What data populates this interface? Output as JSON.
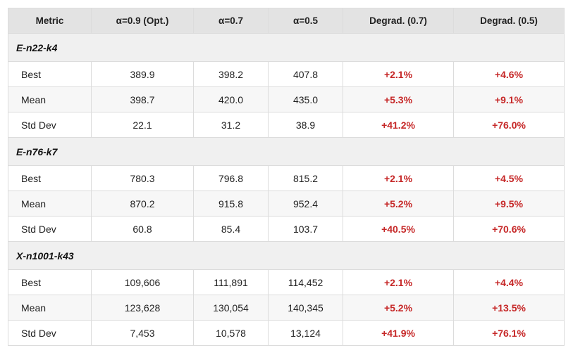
{
  "headers": [
    "Metric",
    "α=0.9 (Opt.)",
    "α=0.7",
    "α=0.5",
    "Degrad. (0.7)",
    "Degrad. (0.5)"
  ],
  "groups": [
    {
      "name": "E-n22-k4",
      "rows": [
        {
          "metric": "Best",
          "opt": "389.9",
          "a07": "398.2",
          "a05": "407.8",
          "deg07": "+2.1%",
          "deg05": "+4.6%"
        },
        {
          "metric": "Mean",
          "opt": "398.7",
          "a07": "420.0",
          "a05": "435.0",
          "deg07": "+5.3%",
          "deg05": "+9.1%"
        },
        {
          "metric": "Std Dev",
          "opt": "22.1",
          "a07": "31.2",
          "a05": "38.9",
          "deg07": "+41.2%",
          "deg05": "+76.0%"
        }
      ]
    },
    {
      "name": "E-n76-k7",
      "rows": [
        {
          "metric": "Best",
          "opt": "780.3",
          "a07": "796.8",
          "a05": "815.2",
          "deg07": "+2.1%",
          "deg05": "+4.5%"
        },
        {
          "metric": "Mean",
          "opt": "870.2",
          "a07": "915.8",
          "a05": "952.4",
          "deg07": "+5.2%",
          "deg05": "+9.5%"
        },
        {
          "metric": "Std Dev",
          "opt": "60.8",
          "a07": "85.4",
          "a05": "103.7",
          "deg07": "+40.5%",
          "deg05": "+70.6%"
        }
      ]
    },
    {
      "name": "X-n1001-k43",
      "rows": [
        {
          "metric": "Best",
          "opt": "109,606",
          "a07": "111,891",
          "a05": "114,452",
          "deg07": "+2.1%",
          "deg05": "+4.4%"
        },
        {
          "metric": "Mean",
          "opt": "123,628",
          "a07": "130,054",
          "a05": "140,345",
          "deg07": "+5.2%",
          "deg05": "+13.5%"
        },
        {
          "metric": "Std Dev",
          "opt": "7,453",
          "a07": "10,578",
          "a05": "13,124",
          "deg07": "+41.9%",
          "deg05": "+76.1%"
        }
      ]
    }
  ],
  "colors": {
    "degradation": "#c62828",
    "header_bg": "#e3e3e3",
    "group_bg": "#f0f0f0"
  }
}
